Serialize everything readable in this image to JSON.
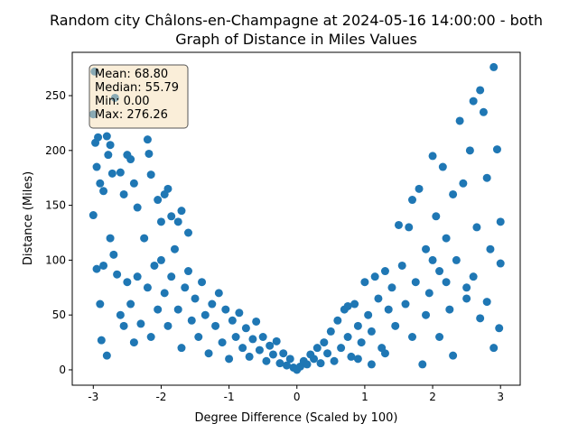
{
  "chart_data": {
    "type": "scatter",
    "title": [
      "Random city Châlons-en-Champagne at 2024-05-16 14:00:00  - both",
      "Graph of Distance in Miles Values"
    ],
    "x_label": "Degree Difference (Scaled by 100)",
    "y_label": "Distance (Miles)",
    "annotations": [
      "Mean: 68.80",
      "Median: 55.79",
      "Min: 0.00",
      "Max: 276.26"
    ],
    "color": "#1f77b4",
    "xlim": [
      -3.31,
      3.29
    ],
    "ylim": [
      -14,
      289.5
    ],
    "xticks": [
      -3,
      -2,
      -1,
      0,
      1,
      2,
      3
    ],
    "yticks": [
      0,
      50,
      100,
      150,
      200,
      250
    ],
    "x": [
      -2.98,
      -3.0,
      -2.95,
      -2.97,
      -2.93,
      -2.9,
      -2.85,
      -2.8,
      -2.78,
      -2.75,
      -2.72,
      -2.68,
      -2.6,
      -2.55,
      -2.5,
      -2.45,
      -2.4,
      -2.35,
      -2.2,
      -2.18,
      -2.15,
      -2.05,
      -2.0,
      -1.95,
      -1.9,
      -1.85,
      -1.75,
      -1.7,
      -1.6,
      -3.0,
      -2.95,
      -2.9,
      -2.88,
      -2.85,
      -2.8,
      -2.75,
      -2.7,
      -2.65,
      -2.6,
      -2.55,
      -2.5,
      -2.45,
      -2.4,
      -2.35,
      -2.3,
      -2.25,
      -2.2,
      -2.15,
      -2.1,
      -2.05,
      -2.0,
      -1.95,
      -1.9,
      -1.85,
      -1.8,
      -1.75,
      -1.7,
      -1.65,
      -1.6,
      -1.55,
      -1.5,
      -1.45,
      -1.4,
      -1.35,
      -1.3,
      -1.25,
      -1.2,
      -1.15,
      -1.1,
      -1.05,
      -1.0,
      -0.95,
      -0.9,
      -0.85,
      -0.8,
      -0.75,
      -0.7,
      -0.65,
      -0.6,
      -0.55,
      -0.5,
      -0.45,
      -0.4,
      -0.35,
      -0.3,
      -0.25,
      -0.2,
      -0.15,
      -0.1,
      -0.05,
      0.0,
      0.05,
      0.1,
      0.15,
      0.2,
      0.25,
      0.3,
      0.35,
      0.4,
      0.45,
      0.5,
      0.55,
      0.6,
      0.65,
      0.7,
      0.75,
      0.8,
      0.85,
      0.9,
      0.95,
      1.0,
      1.05,
      1.1,
      1.15,
      1.2,
      1.25,
      1.3,
      1.35,
      1.4,
      1.45,
      1.5,
      1.55,
      1.6,
      1.65,
      1.7,
      1.75,
      1.8,
      1.85,
      1.9,
      1.95,
      2.0,
      2.05,
      2.1,
      2.15,
      2.2,
      2.25,
      2.3,
      2.35,
      2.4,
      2.45,
      2.5,
      2.55,
      2.6,
      2.65,
      2.7,
      2.75,
      2.8,
      2.85,
      2.9,
      2.95,
      3.0,
      2.98,
      2.9,
      2.7,
      2.5,
      2.3,
      2.1,
      1.9,
      1.7,
      1.3,
      1.1,
      0.9,
      0.75,
      2.0,
      2.6,
      2.8,
      3.0,
      2.2
    ],
    "values": [
      272,
      233,
      185,
      207,
      212,
      170,
      163,
      213,
      196,
      205,
      179,
      248,
      180,
      160,
      196,
      192,
      170,
      148,
      210,
      197,
      178,
      155,
      135,
      160,
      165,
      140,
      135,
      145,
      125,
      141,
      92,
      60,
      27,
      95,
      13,
      120,
      105,
      87,
      50,
      40,
      80,
      60,
      25,
      85,
      42,
      120,
      75,
      30,
      95,
      55,
      100,
      70,
      40,
      85,
      110,
      55,
      20,
      75,
      90,
      45,
      65,
      30,
      80,
      50,
      15,
      60,
      40,
      70,
      25,
      55,
      10,
      45,
      30,
      52,
      20,
      38,
      12,
      28,
      44,
      18,
      30,
      8,
      22,
      14,
      26,
      6,
      15,
      4,
      10,
      2,
      0,
      3,
      8,
      5,
      14,
      10,
      20,
      6,
      25,
      15,
      35,
      8,
      45,
      20,
      55,
      30,
      12,
      60,
      40,
      25,
      80,
      50,
      35,
      85,
      65,
      20,
      90,
      55,
      75,
      40,
      132,
      95,
      60,
      130,
      155,
      80,
      165,
      5,
      110,
      70,
      195,
      140,
      90,
      185,
      120,
      55,
      160,
      100,
      227,
      170,
      75,
      200,
      245,
      130,
      255,
      235,
      175,
      110,
      276,
      201,
      135,
      38,
      20,
      47,
      65,
      13,
      30,
      50,
      30,
      15,
      5,
      10,
      58,
      100,
      85,
      62,
      97,
      80
    ]
  }
}
